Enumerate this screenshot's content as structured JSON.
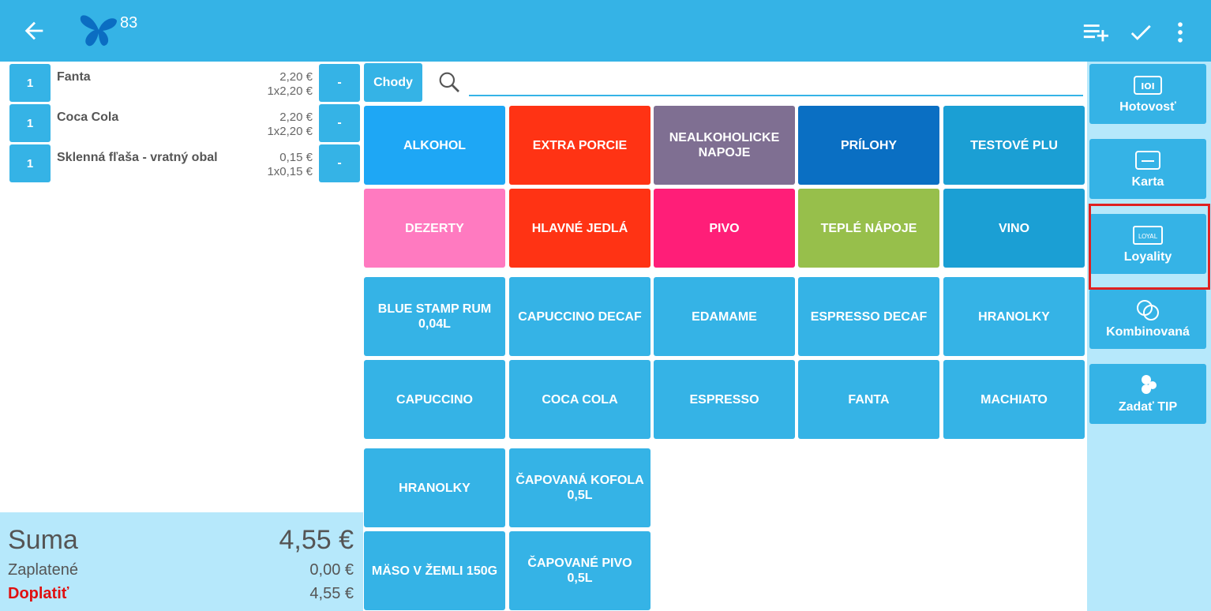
{
  "header": {
    "order_number": "83",
    "accent": "#35b3e6"
  },
  "order_items": [
    {
      "qty": "1",
      "name": "Fanta",
      "total": "2,20 €",
      "unit": "1x2,20 €",
      "remove": "-"
    },
    {
      "qty": "1",
      "name": "Coca Cola",
      "total": "2,20 €",
      "unit": "1x2,20 €",
      "remove": "-"
    },
    {
      "qty": "1",
      "name": "Sklenná fľaša - vratný obal",
      "total": "0,15 €",
      "unit": "1x0,15 €",
      "remove": "-"
    }
  ],
  "totals": {
    "sum_label": "Suma",
    "sum_value": "4,55 €",
    "paid_label": "Zaplatené",
    "paid_value": "0,00 €",
    "due_label": "Doplatiť",
    "due_value": "4,55 €"
  },
  "search": {
    "chody_label": "Chody",
    "value": "",
    "placeholder": ""
  },
  "categories": [
    {
      "label": "ALKOHOL",
      "color": "#1ea7f5"
    },
    {
      "label": "EXTRA PORCIE",
      "color": "#ff3314"
    },
    {
      "label": "NEALKOHOLICKE NAPOJE",
      "color": "#7f6f92"
    },
    {
      "label": "PRÍLOHY",
      "color": "#0a6fc3"
    },
    {
      "label": "TESTOVÉ PLU",
      "color": "#1b9fd4"
    },
    {
      "label": "DEZERTY",
      "color": "#ff7ac0"
    },
    {
      "label": "HLAVNÉ JEDLÁ",
      "color": "#ff3314"
    },
    {
      "label": "PIVO",
      "color": "#ff1e78"
    },
    {
      "label": "TEPLÉ NÁPOJE",
      "color": "#97bf4b"
    },
    {
      "label": "VINO",
      "color": "#1b9fd4"
    }
  ],
  "products": [
    {
      "label": "BLUE STAMP RUM 0,04L"
    },
    {
      "label": "CAPUCCINO DECAF"
    },
    {
      "label": "EDAMAME"
    },
    {
      "label": "ESPRESSO DECAF"
    },
    {
      "label": "HRANOLKY"
    },
    {
      "label": "CAPUCCINO"
    },
    {
      "label": "COCA COLA"
    },
    {
      "label": "ESPRESSO"
    },
    {
      "label": "FANTA"
    },
    {
      "label": "MACHIATO"
    },
    {
      "label": "HRANOLKY"
    },
    {
      "label": "ČAPOVANÁ KOFOLA 0,5L"
    },
    {
      "label": "MÄSO V ŽEMLI 150G"
    },
    {
      "label": "ČAPOVANÉ PIVO 0,5L"
    }
  ],
  "product_color": "#35b3e6",
  "payments": [
    {
      "label": "Hotovosť",
      "icon": "cash-icon"
    },
    {
      "label": "Karta",
      "icon": "card-icon"
    },
    {
      "label": "Loyality",
      "icon": "loyalty-icon",
      "icon_text": "LOYAL"
    },
    {
      "label": "Kombinovaná",
      "icon": "combined-icon"
    },
    {
      "label": "Zadať TIP",
      "icon": "tip-icon"
    }
  ]
}
